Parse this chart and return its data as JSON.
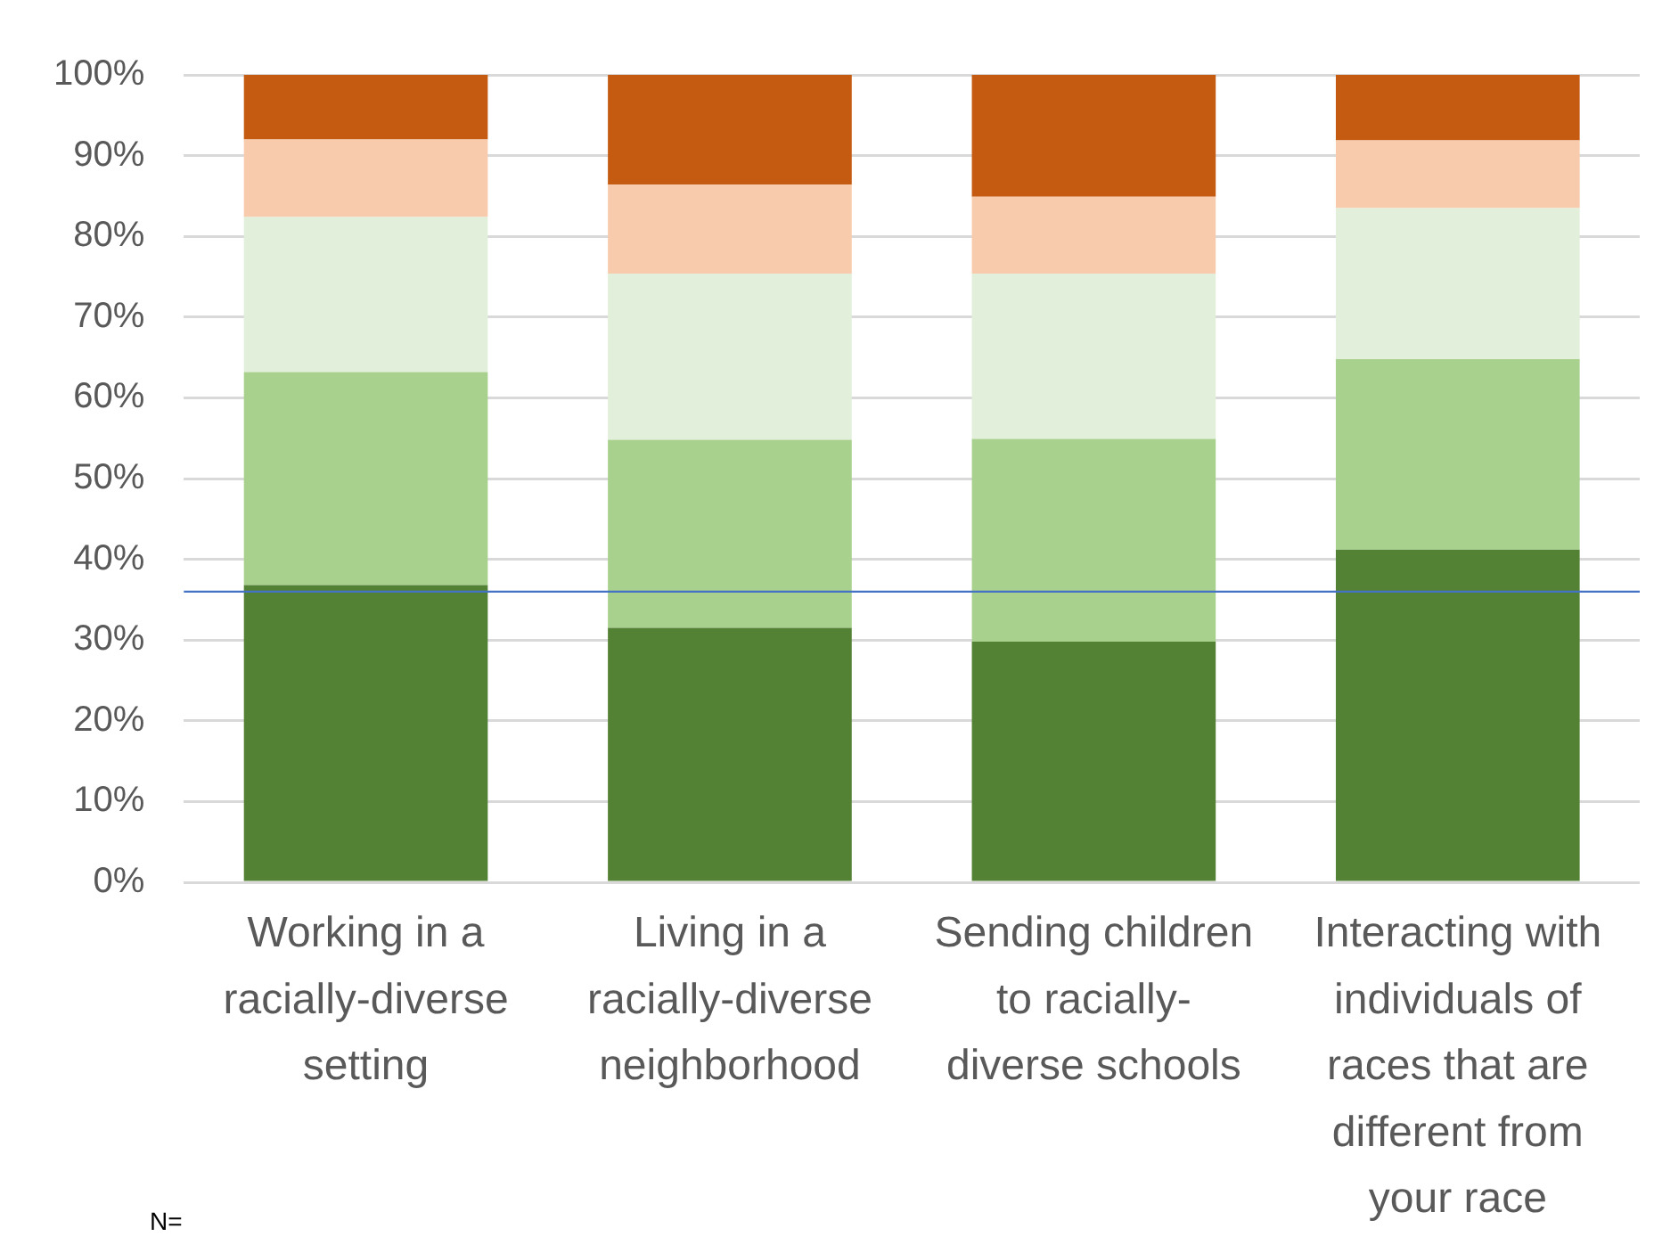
{
  "chart_data": {
    "type": "bar",
    "stacked": true,
    "categories": [
      "Working in a racially-diverse setting",
      "Living in a racially-diverse neighborhood",
      "Sending children to racially-diverse schools",
      "Interacting with individuals of races that are different from your race"
    ],
    "series": [
      {
        "color": "#548235",
        "values": [
          36.8,
          31.5,
          29.8,
          41.2
        ]
      },
      {
        "color": "#a9d18e",
        "values": [
          26.4,
          23.3,
          25.1,
          23.6
        ]
      },
      {
        "color": "#e2efda",
        "values": [
          19.2,
          20.6,
          20.5,
          18.7
        ]
      },
      {
        "color": "#f8cbad",
        "values": [
          9.6,
          11.0,
          9.5,
          8.4
        ]
      },
      {
        "color": "#c55a11",
        "values": [
          8.0,
          13.6,
          15.1,
          8.1
        ]
      }
    ],
    "ylim": [
      0,
      100
    ],
    "yticks": [
      {
        "value": 0,
        "label": "0%"
      },
      {
        "value": 10,
        "label": "10%"
      },
      {
        "value": 20,
        "label": "20%"
      },
      {
        "value": 30,
        "label": "30%"
      },
      {
        "value": 40,
        "label": "40%"
      },
      {
        "value": 50,
        "label": "50%"
      },
      {
        "value": 60,
        "label": "60%"
      },
      {
        "value": 70,
        "label": "70%"
      },
      {
        "value": 80,
        "label": "80%"
      },
      {
        "value": 90,
        "label": "90%"
      },
      {
        "value": 100,
        "label": "100%"
      }
    ],
    "grid": "y",
    "legend": false,
    "ref_lines": [
      {
        "axis": "y",
        "value": 36,
        "color": "#4472c4"
      }
    ],
    "annotations": [
      "N="
    ]
  }
}
